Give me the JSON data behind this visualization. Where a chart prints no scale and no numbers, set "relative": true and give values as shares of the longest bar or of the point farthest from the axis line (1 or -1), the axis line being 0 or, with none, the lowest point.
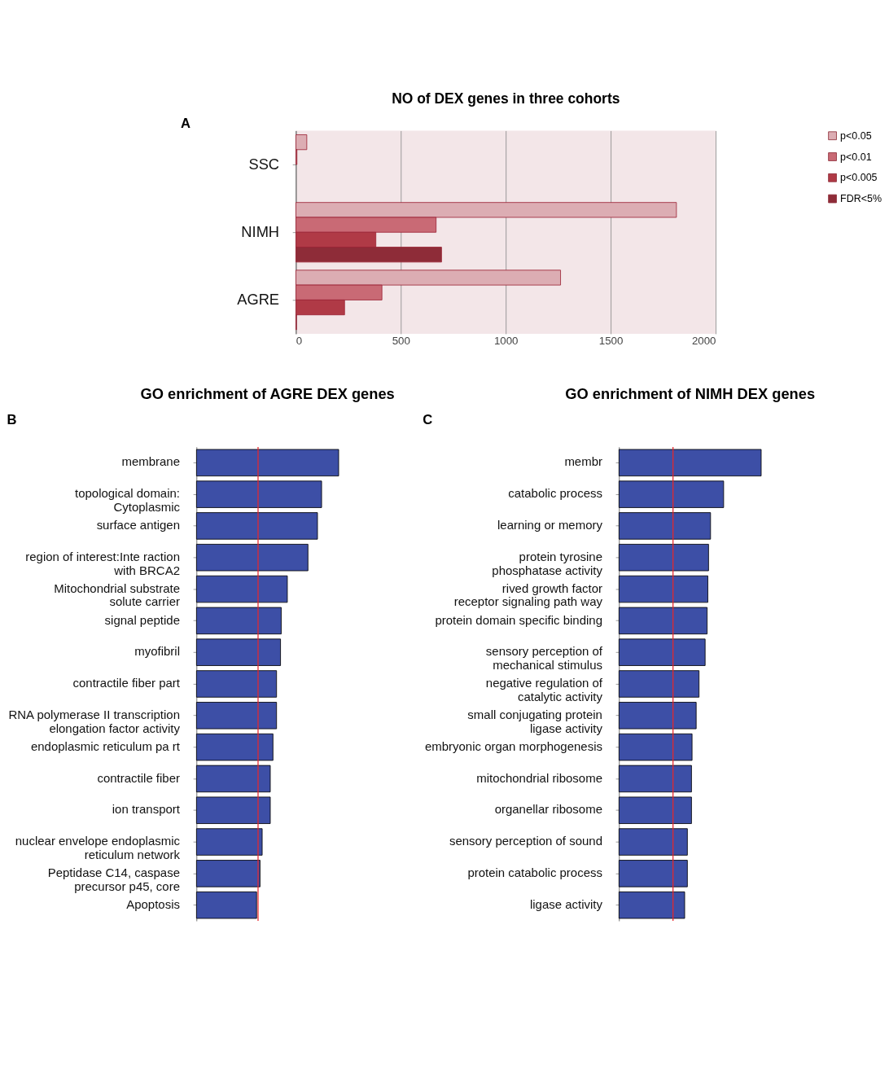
{
  "chart_data": [
    {
      "type": "bar",
      "orientation": "horizontal",
      "title": "NO of DEX genes in three cohorts",
      "annotations": [
        "A"
      ],
      "categories": [
        "SSC",
        "NIMH",
        "AGRE"
      ],
      "series": [
        {
          "name": "p<0.05",
          "color": "#dcadb3",
          "values": [
            52,
            1813,
            1261
          ]
        },
        {
          "name": "p<0.01",
          "color": "#c96a75",
          "values": [
            5,
            668,
            410
          ]
        },
        {
          "name": "p<0.005",
          "color": "#b03a46",
          "values": [
            null,
            381,
            232
          ]
        },
        {
          "name": "FDR<5%",
          "color": "#8e2c38",
          "values": [
            null,
            694,
            3
          ]
        }
      ],
      "xlim": [
        0,
        2000
      ],
      "xticks": [
        0,
        500,
        1000,
        1500,
        2000
      ],
      "grid": "x",
      "legend": "right"
    },
    {
      "type": "bar",
      "orientation": "horizontal",
      "relative": true,
      "title": "GO enrichment of AGRE DEX genes",
      "annotations": [
        "B"
      ],
      "categories": [
        "membrane",
        "topological domain:\nCytoplasmic",
        "surface antigen",
        "region of interest:Inte raction\nwith BRCA2",
        "Mitochondrial substrate\nsolute carrier",
        "signal peptide",
        "myofibril",
        "contractile fiber part",
        "RNA polymerase II transcription\nelongation factor activity",
        "endoplasmic reticulum pa rt",
        "contractile fiber",
        "ion transport",
        "nuclear envelope endoplasmic\nreticulum network",
        "Peptidase C14, caspase\nprecursor p45, core",
        "Apoptosis"
      ],
      "values": [
        1,
        0.88,
        0.851,
        0.784,
        0.639,
        0.596,
        0.591,
        0.563,
        0.563,
        0.538,
        0.519,
        0.519,
        0.462,
        0.447,
        0.423
      ],
      "color": "#3d4fa6",
      "ref_lines": [
        {
          "axis": "x",
          "value": 0.433,
          "color": "#e8262b"
        }
      ]
    },
    {
      "type": "bar",
      "orientation": "horizontal",
      "relative": true,
      "title": "GO enrichment of NIMH DEX genes",
      "annotations": [
        "C"
      ],
      "categories": [
        "membr",
        "catabolic process",
        "learning or memory",
        "protein tyrosine\nphosphatase activity",
        "rived growth factor\nreceptor signaling path way",
        "protein domain specific binding",
        "sensory perception of\nmechanical stimulus",
        "negative regulation of\ncatalytic activity",
        "small conjugating protein\nligase activity",
        "embryonic organ morphogenesis",
        "mitochondrial ribosome",
        "organellar ribosome",
        "sensory perception of sound",
        "protein catabolic process",
        "ligase activity"
      ],
      "values": [
        1,
        0.736,
        0.644,
        0.63,
        0.625,
        0.62,
        0.606,
        0.563,
        0.543,
        0.514,
        0.51,
        0.51,
        0.481,
        0.481,
        0.462
      ],
      "color": "#3d4fa6",
      "ref_lines": [
        {
          "axis": "x",
          "value": 0.38,
          "color": "#e8262b"
        }
      ]
    }
  ]
}
